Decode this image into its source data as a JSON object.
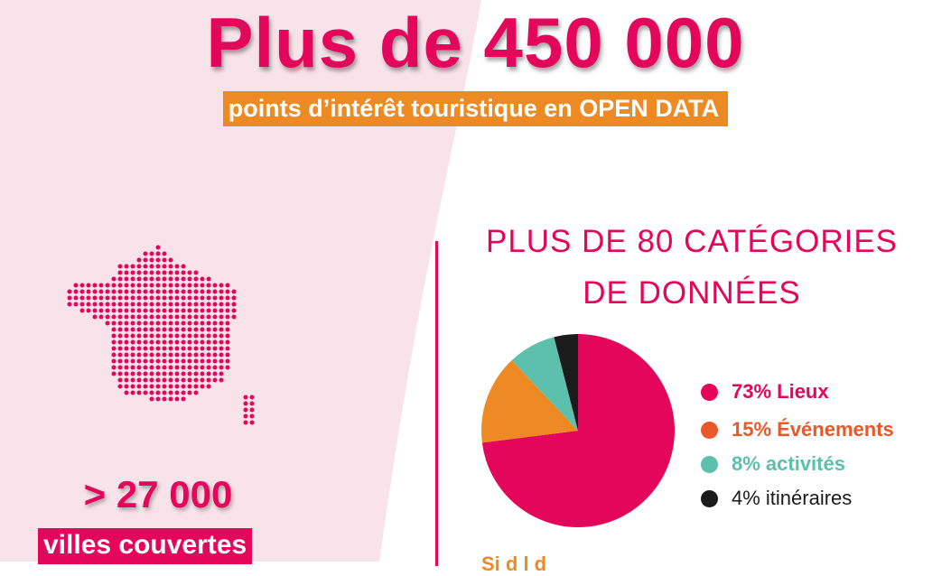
{
  "headline": {
    "title": "Plus de 450 000",
    "subtitle": "points d’intérêt touristique en OPEN DATA"
  },
  "stats": {
    "cities_value": "> 27 000",
    "cities_label": "villes couvertes"
  },
  "categories": {
    "title_line1": "PLUS DE 80 CATÉGORIES",
    "title_line2": "DE DONNÉES"
  },
  "cut_text": "Si       d   l                              d",
  "colors": {
    "primary": "#e4065a",
    "orange": "#ee8a24",
    "legend_orange": "#e9582a",
    "teal": "#5dc0ad",
    "black": "#1b1b1b",
    "pink_bg": "#f9e3ea"
  },
  "icons": {
    "map": "france-map-icon",
    "legend_dot": "legend-dot-icon"
  },
  "chart_data": {
    "type": "pie",
    "categories": [
      "Lieux",
      "Événements",
      "activités",
      "itinéraires"
    ],
    "values": [
      73,
      15,
      8,
      4
    ],
    "colors": [
      "#e4065a",
      "#ee8a24",
      "#5dc0ad",
      "#1b1b1b"
    ],
    "title": "PLUS DE 80 CATÉGORIES DE DONNÉES",
    "legend": [
      {
        "label": "73% Lieux",
        "color": "#e4065a"
      },
      {
        "label": "15% Événements",
        "color": "#e9582a"
      },
      {
        "label": "8% activités",
        "color": "#5dc0ad"
      },
      {
        "label": "4% itinéraires",
        "color": "#1b1b1b"
      }
    ],
    "legend_position": "right"
  }
}
